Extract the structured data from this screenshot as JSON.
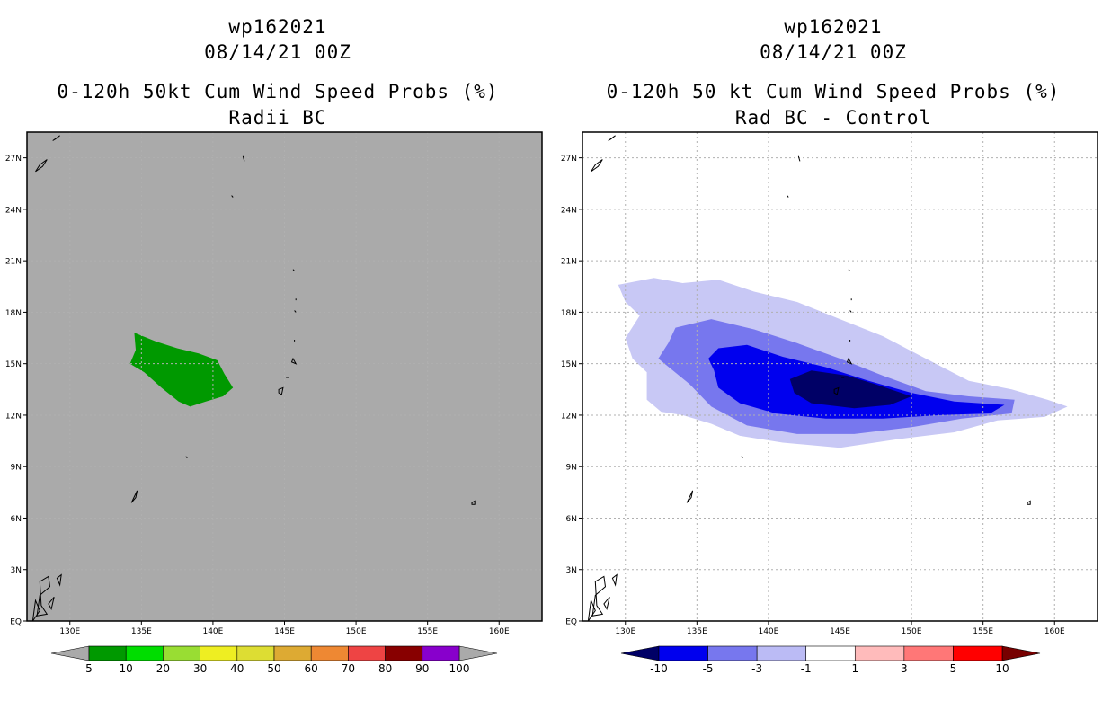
{
  "left_panel": {
    "storm_id": "wp162021",
    "datetime": "08/14/21 00Z",
    "product": "0-120h 50kt Cum Wind Speed Probs (%)",
    "subtitle": "Radii BC",
    "colorbar": {
      "labels": [
        "5",
        "10",
        "20",
        "30",
        "40",
        "50",
        "60",
        "70",
        "80",
        "90",
        "100"
      ],
      "colors": [
        "#009900",
        "#00dd00",
        "#99dd33",
        "#eeee22",
        "#dddd33",
        "#ddaa33",
        "#ee8833",
        "#ee4444",
        "#880000",
        "#8800cc"
      ],
      "under_color": "#aaaaaa",
      "over_color": "#aaaaaa"
    },
    "background_color": "#aaaaaa",
    "contour_color": "#009900"
  },
  "right_panel": {
    "storm_id": "wp162021",
    "datetime": "08/14/21 00Z",
    "product": "0-120h 50 kt Cum Wind Speed Probs (%)",
    "subtitle": "Rad BC - Control",
    "colorbar": {
      "labels": [
        "-10",
        "-5",
        "-3",
        "-1",
        "1",
        "3",
        "5",
        "10"
      ],
      "under_color": "#000066",
      "colors": [
        "#0000ee",
        "#7777ee",
        "#bbbbf5",
        "#ffffff",
        "#ffbbbb",
        "#ff7777",
        "#ff0000"
      ],
      "over_color": "#770000"
    },
    "fill_colors": {
      "minus_1_to_3": "#c8c8f5",
      "minus_3_to_5": "#7777ee",
      "minus_5_to_10": "#0000ee",
      "below_minus_10": "#000066"
    }
  },
  "axes": {
    "lat_labels": [
      "EQ",
      "3N",
      "6N",
      "9N",
      "12N",
      "15N",
      "18N",
      "21N",
      "24N",
      "27N"
    ],
    "lon_labels": [
      "130E",
      "135E",
      "140E",
      "145E",
      "150E",
      "155E",
      "160E"
    ]
  }
}
